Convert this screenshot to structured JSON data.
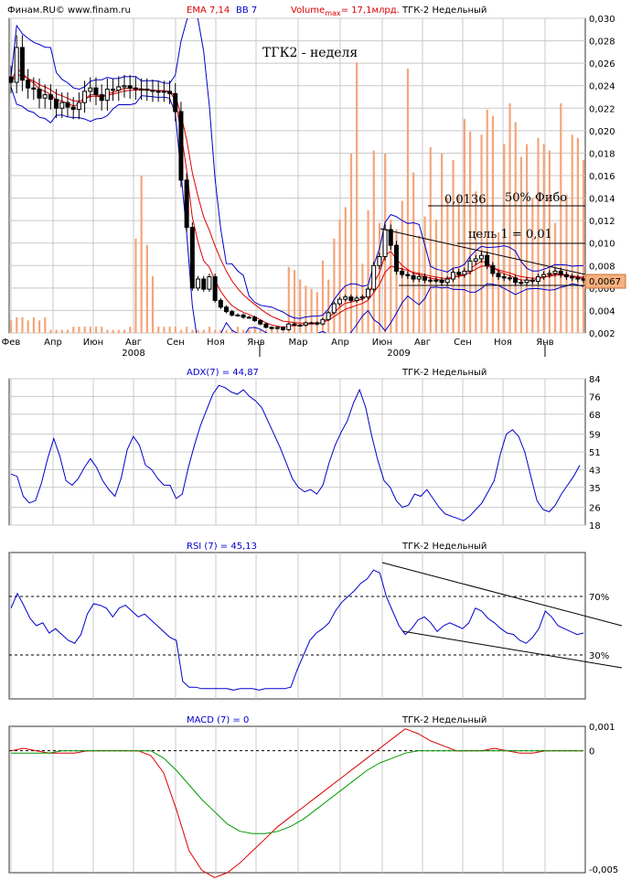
{
  "header": {
    "source": "Финам.RU© www.finam.ru",
    "ema": "EMA 7,14",
    "bb": "BB 7",
    "volume_prefix": "Volume",
    "volume_sub": "max",
    "volume_value": "= 17,1млрд.",
    "ticker": "ТГК-2 Недельный"
  },
  "annotations": {
    "title": "ТГК2 - неделя",
    "fibo_value": "0,0136",
    "fibo_label": "50% Фибо",
    "target": "цель 1 = 0,01",
    "last_price": "0,0067"
  },
  "colors": {
    "frame": "#333333",
    "grid": "#c8c8c8",
    "bollinger": "#0000cc",
    "ema": "#dd0000",
    "volume": "#f5a57a",
    "candle": "#000000",
    "adx": "#0000cc",
    "rsi": "#0000cc",
    "macd": "#dd0000",
    "signal": "#009900",
    "title_blue": "#0000cc",
    "price_box": "#f7b07e"
  },
  "chart_data": [
    {
      "type": "candlestick",
      "title": "ТГК-2 Недельный",
      "ylim": [
        0.002,
        0.03
      ],
      "y_ticks": [
        "0,002",
        "0,004",
        "0,006",
        "0,008",
        "0,010",
        "0,012",
        "0,014",
        "0,016",
        "0,018",
        "0,020",
        "0,022",
        "0,024",
        "0,026",
        "0,028",
        "0,030"
      ],
      "x_ticks": [
        "Фев",
        "Апр",
        "Июн",
        "Авг",
        "Сен",
        "Ноя",
        "Янв",
        "Мар",
        "Апр",
        "Июн",
        "Авг",
        "Сен",
        "Ноя",
        "Янв"
      ],
      "year_labels": [
        "2008",
        "2009"
      ],
      "close": [
        0.0243,
        0.0274,
        0.0245,
        0.0238,
        0.0237,
        0.0229,
        0.0232,
        0.0228,
        0.022,
        0.0225,
        0.0221,
        0.0219,
        0.0225,
        0.0235,
        0.0238,
        0.0232,
        0.0227,
        0.0237,
        0.0236,
        0.0239,
        0.024,
        0.0238,
        0.0237,
        0.0237,
        0.0236,
        0.0235,
        0.0235,
        0.0235,
        0.0233,
        0.0217,
        0.0156,
        0.0114,
        0.006,
        0.0068,
        0.0059,
        0.007,
        0.0049,
        0.0043,
        0.0039,
        0.0036,
        0.0036,
        0.0034,
        0.0034,
        0.0031,
        0.0028,
        0.0025,
        0.0024,
        0.0025,
        0.0023,
        0.0028,
        0.0027,
        0.0027,
        0.0029,
        0.0029,
        0.0028,
        0.0032,
        0.0038,
        0.0046,
        0.005,
        0.0052,
        0.0049,
        0.0051,
        0.0052,
        0.0059,
        0.008,
        0.0088,
        0.0112,
        0.0098,
        0.0075,
        0.0072,
        0.0071,
        0.0068,
        0.007,
        0.0067,
        0.0067,
        0.0067,
        0.0065,
        0.0068,
        0.0074,
        0.0072,
        0.0075,
        0.0084,
        0.0086,
        0.0089,
        0.008,
        0.0073,
        0.007,
        0.0069,
        0.0069,
        0.0065,
        0.0065,
        0.0067,
        0.0066,
        0.007,
        0.0072,
        0.0073,
        0.0075,
        0.0072,
        0.007,
        0.0069,
        0.0068,
        0.0067
      ],
      "volume_max": "17,1млрд.",
      "volume_relative": [
        0.04,
        0.05,
        0.05,
        0.04,
        0.05,
        0.04,
        0.05,
        0.01,
        0.01,
        0.01,
        0.01,
        0.02,
        0.02,
        0.02,
        0.02,
        0.02,
        0.02,
        0.01,
        0.01,
        0.01,
        0.01,
        0.02,
        0.3,
        0.5,
        0.28,
        0.18,
        0.02,
        0.02,
        0.02,
        0.02,
        0.01,
        0.02,
        0.01,
        0.01,
        0.01,
        0.02,
        0.01,
        0.01,
        0.01,
        0.01,
        0.02,
        0.01,
        0.01,
        0.02,
        0.01,
        0.01,
        0.02,
        0.02,
        0.01,
        0.21,
        0.2,
        0.17,
        0.15,
        0.14,
        0.13,
        0.23,
        0.17,
        0.3,
        0.36,
        0.4,
        0.57,
        0.86,
        0.22,
        0.39,
        0.58,
        0.35,
        0.57,
        0.36,
        0.33,
        0.42,
        0.84,
        0.51,
        0.31,
        0.37,
        0.59,
        0.36,
        0.57,
        0.43,
        0.55,
        0.44,
        0.68,
        0.64,
        0.45,
        0.63,
        0.71,
        0.69,
        0.32,
        0.6,
        0.73,
        0.67,
        0.56,
        0.6,
        0.43,
        0.62,
        0.6,
        0.58,
        0.35,
        0.73,
        0.44,
        0.63,
        0.62,
        0.55
      ],
      "annotations": [
        "ТГК2 - неделя",
        "0,0136",
        "50% Фибо",
        "цель 1 = 0,01",
        "0,0067"
      ]
    },
    {
      "type": "line",
      "title": "ADX(7) = 44,87",
      "ylim": [
        18,
        84
      ],
      "y_ticks": [
        "18",
        "26",
        "35",
        "43",
        "51",
        "59",
        "68",
        "76",
        "84"
      ],
      "values": [
        41,
        40,
        31,
        28,
        29,
        37,
        48,
        57,
        49,
        38,
        36,
        39,
        44,
        48,
        44,
        38,
        34,
        31,
        39,
        52,
        58,
        54,
        45,
        43,
        39,
        36,
        36,
        30,
        32,
        44,
        54,
        63,
        70,
        77,
        81,
        80,
        78,
        77,
        79,
        76,
        74,
        71,
        65,
        59,
        53,
        46,
        39,
        35,
        33,
        34,
        32,
        36,
        46,
        54,
        60,
        65,
        73,
        79,
        71,
        58,
        47,
        38,
        35,
        29,
        26,
        27,
        32,
        31,
        34,
        30,
        26,
        23,
        22,
        21,
        20,
        22,
        25,
        28,
        33,
        38,
        50,
        59,
        61,
        58,
        51,
        40,
        29,
        25,
        24,
        27,
        32,
        36,
        40,
        45
      ]
    },
    {
      "type": "line",
      "title": "RSI (7) = 45,13",
      "ylim": [
        0,
        100
      ],
      "y_ticks": [
        "30%",
        "70%"
      ],
      "values": [
        62,
        72,
        64,
        55,
        50,
        52,
        45,
        48,
        44,
        40,
        38,
        44,
        58,
        65,
        64,
        62,
        56,
        62,
        64,
        60,
        56,
        58,
        54,
        50,
        46,
        42,
        40,
        12,
        8,
        8,
        7,
        7,
        7,
        7,
        7,
        6,
        7,
        7,
        7,
        6,
        7,
        7,
        7,
        7,
        8,
        20,
        30,
        40,
        45,
        48,
        52,
        60,
        66,
        70,
        74,
        79,
        82,
        88,
        86,
        70,
        60,
        50,
        44,
        48,
        54,
        56,
        52,
        46,
        50,
        52,
        50,
        48,
        52,
        62,
        60,
        55,
        52,
        48,
        45,
        44,
        40,
        38,
        42,
        48,
        60,
        56,
        50,
        48,
        46,
        44,
        45
      ],
      "levels": [
        30,
        70
      ]
    },
    {
      "type": "line",
      "title": "MACD (7) = 0",
      "ylim": [
        -0.005,
        0.001
      ],
      "y_ticks": [
        "0,001",
        "0",
        "-0,005"
      ],
      "series": [
        {
          "name": "MACD",
          "values": [
            0.0,
            0.0001,
            0.0,
            -0.0001,
            -0.0001,
            -0.0001,
            0.0,
            0.0,
            0.0,
            0.0,
            0.0,
            -0.0002,
            -0.0009,
            -0.0024,
            -0.0041,
            -0.0049,
            -0.0052,
            -0.005,
            -0.0046,
            -0.0041,
            -0.0036,
            -0.0031,
            -0.0027,
            -0.0023,
            -0.0019,
            -0.0015,
            -0.0011,
            -0.0007,
            -0.0003,
            0.0001,
            0.0005,
            0.0009,
            0.0007,
            0.0004,
            0.0002,
            0.0,
            0.0,
            0.0,
            0.0001,
            0.0,
            -0.0001,
            -0.0001,
            0.0,
            0.0,
            0.0,
            0.0
          ]
        },
        {
          "name": "Signal",
          "values": [
            -0.0001,
            -0.0001,
            -0.0001,
            -0.0001,
            0.0,
            0.0,
            0.0,
            0.0,
            0.0,
            0.0,
            0.0,
            0.0,
            -0.0003,
            -0.0008,
            -0.0014,
            -0.002,
            -0.0025,
            -0.003,
            -0.0033,
            -0.0034,
            -0.0034,
            -0.0033,
            -0.0031,
            -0.0028,
            -0.0024,
            -0.002,
            -0.0016,
            -0.0012,
            -0.0008,
            -0.0005,
            -0.0003,
            -0.0001,
            0.0,
            0.0,
            0.0,
            0.0,
            0.0,
            0.0,
            0.0,
            0.0,
            0.0,
            0.0,
            0.0,
            0.0,
            0.0,
            0.0
          ]
        }
      ]
    }
  ]
}
